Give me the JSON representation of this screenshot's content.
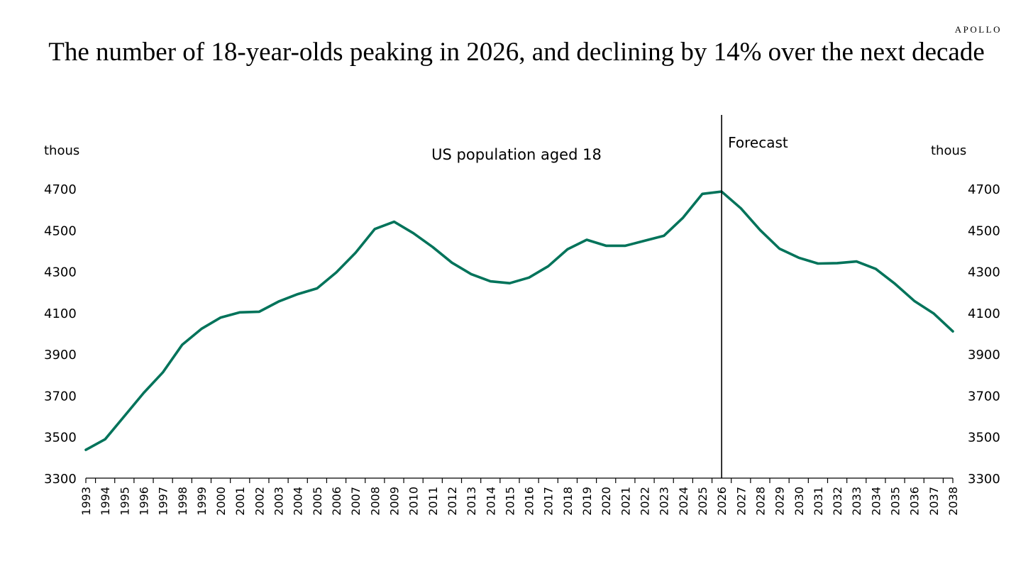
{
  "header": {
    "brand": "APOLLO",
    "title": "The number of 18-year-olds peaking in 2026, and declining by 14% over the next decade"
  },
  "chart_data": {
    "type": "line",
    "title": "The number of 18-year-olds peaking in 2026, and declining by 14% over the next decade",
    "subtitle": "US population aged 18",
    "ylabel_left": "thous",
    "ylabel_right": "thous",
    "ylim": [
      3300,
      4700
    ],
    "yticks": [
      3300,
      3500,
      3700,
      3900,
      4100,
      4300,
      4500,
      4700
    ],
    "annotation": {
      "label": "Forecast",
      "x": 2026
    },
    "line_color": "#00735a",
    "x": [
      1993,
      1994,
      1995,
      1996,
      1997,
      1998,
      1999,
      2000,
      2001,
      2002,
      2003,
      2004,
      2005,
      2006,
      2007,
      2008,
      2009,
      2010,
      2011,
      2012,
      2013,
      2014,
      2015,
      2016,
      2017,
      2018,
      2019,
      2020,
      2021,
      2022,
      2023,
      2024,
      2025,
      2026,
      2027,
      2028,
      2029,
      2030,
      2031,
      2032,
      2033,
      2034,
      2035,
      2036,
      2037,
      2038
    ],
    "series": [
      {
        "values": [
          3437,
          3488,
          3600,
          3712,
          3812,
          3945,
          4022,
          4077,
          4102,
          4105,
          4154,
          4190,
          4218,
          4295,
          4390,
          4505,
          4540,
          4485,
          4418,
          4342,
          4287,
          4252,
          4243,
          4270,
          4325,
          4407,
          4453,
          4424,
          4424,
          4448,
          4472,
          4560,
          4675,
          4686,
          4605,
          4500,
          4410,
          4366,
          4338,
          4340,
          4348,
          4312,
          4240,
          4157,
          4097,
          4010
        ]
      }
    ]
  }
}
